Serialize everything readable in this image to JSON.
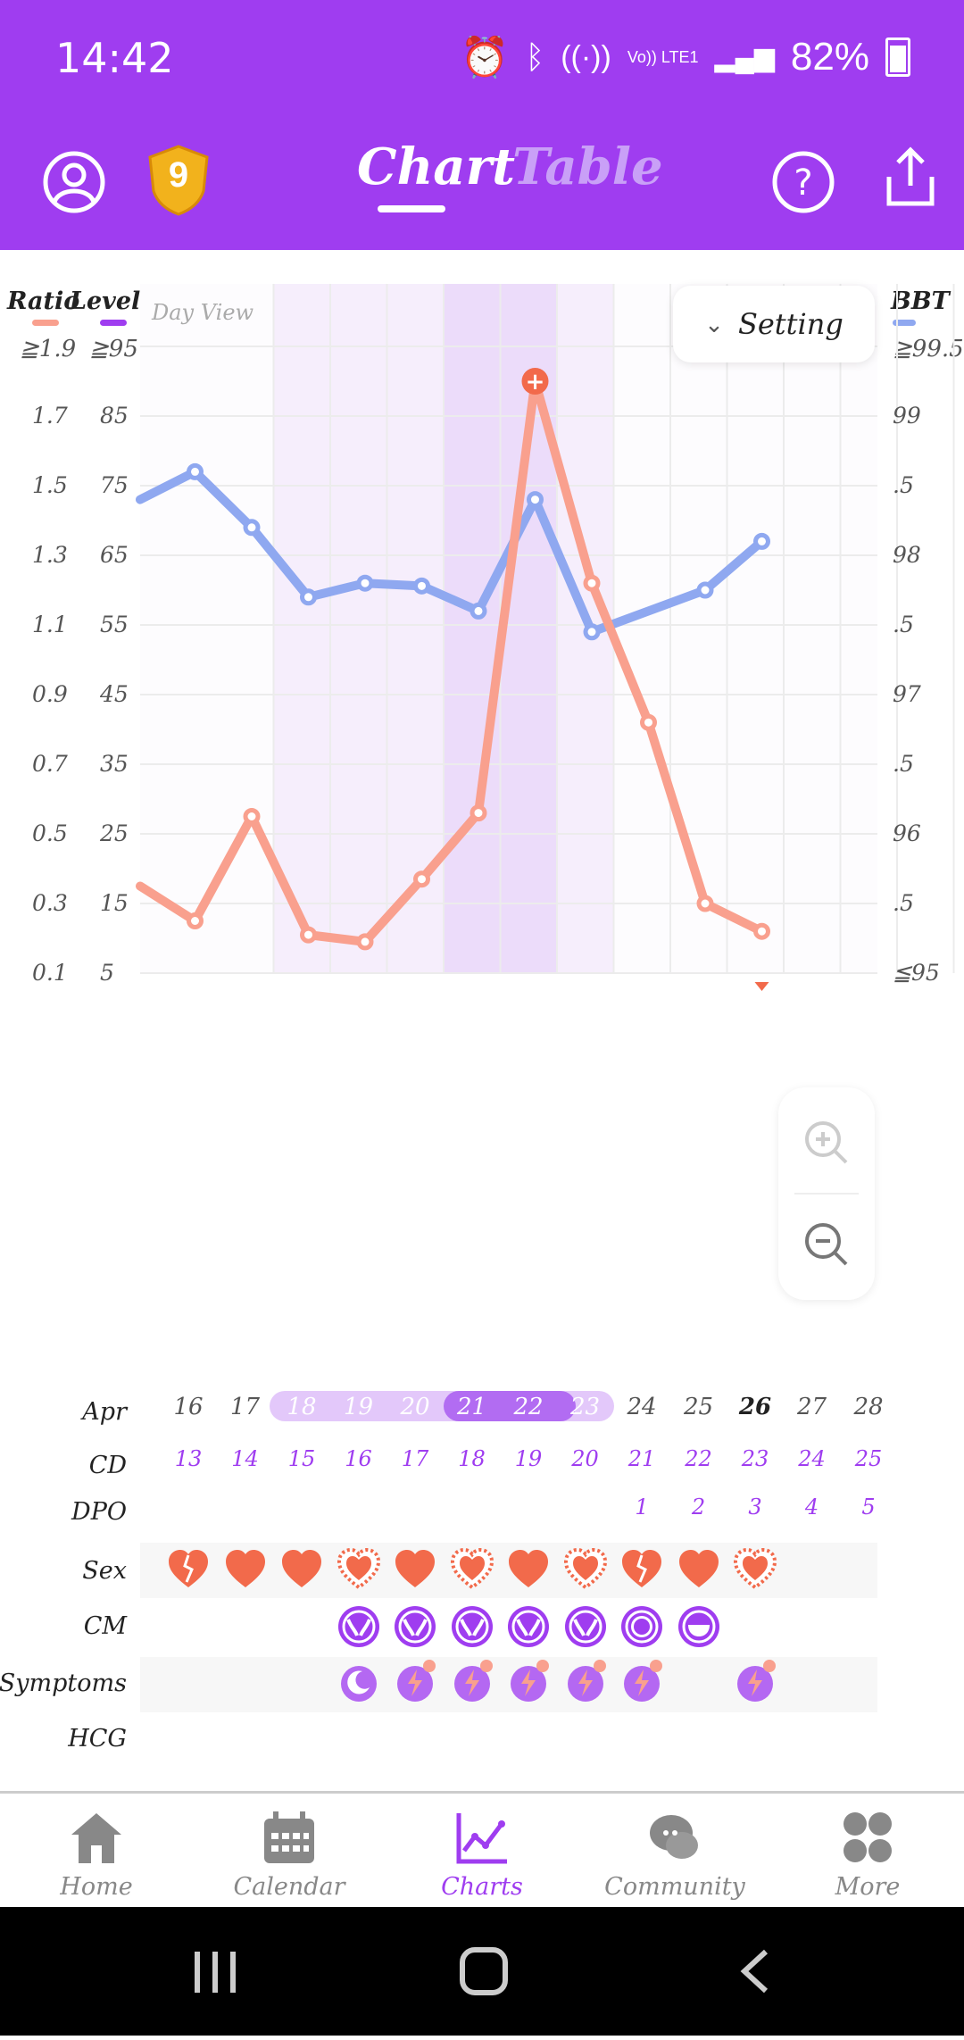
{
  "status_bar": {
    "time": "14:42",
    "battery": "82%",
    "network": "Vo)) LTE1"
  },
  "header": {
    "tabs": [
      {
        "label": "Chart",
        "active": true
      },
      {
        "label": "Table",
        "active": false
      }
    ],
    "badge_number": "9"
  },
  "chart_labels": {
    "left_title_ratio": "Ratio",
    "left_title_level": "Level",
    "right_title": "BBT",
    "view_mode": "Day View",
    "setting_label": "Setting",
    "ratio_top": "≧1.9",
    "level_top": "≧95",
    "bbt_top": "≧99.5",
    "bbt_bottom": "≦95",
    "ratio_ticks": [
      "1.7",
      "1.5",
      "1.3",
      "1.1",
      "0.9",
      "0.7",
      "0.5",
      "0.3",
      "0.1"
    ],
    "level_ticks": [
      "85",
      "75",
      "65",
      "55",
      "45",
      "35",
      "25",
      "15",
      "5"
    ],
    "bbt_ticks": [
      "99",
      ".5",
      "98",
      ".5",
      "97",
      ".5",
      "96",
      ".5"
    ]
  },
  "chart_data": {
    "type": "line",
    "x": [
      "Apr 15",
      "Apr 16",
      "Apr 17",
      "Apr 18",
      "Apr 19",
      "Apr 20",
      "Apr 21",
      "Apr 22",
      "Apr 23",
      "Apr 24",
      "Apr 25",
      "Apr 26"
    ],
    "series": [
      {
        "name": "Ratio",
        "color": "#f9a08e",
        "values": [
          0.35,
          0.25,
          0.55,
          0.21,
          0.19,
          0.37,
          0.56,
          1.8,
          1.22,
          0.82,
          0.3,
          0.22
        ]
      },
      {
        "name": "BBT",
        "color": "#8fa8f0",
        "values": [
          98.4,
          98.6,
          98.2,
          97.7,
          97.8,
          97.78,
          97.6,
          98.4,
          97.45,
          null,
          97.75,
          98.1
        ]
      }
    ],
    "ratio_range": [
      0.1,
      1.9
    ],
    "bbt_range": [
      95,
      99.5
    ],
    "fertile_window": [
      "Apr 18",
      "Apr 19",
      "Apr 20",
      "Apr 21",
      "Apr 22",
      "Apr 23"
    ],
    "peak_day": "Apr 22"
  },
  "rows": {
    "month_label": "Apr",
    "cd_label": "CD",
    "dpo_label": "DPO",
    "sex_label": "Sex",
    "cm_label": "CM",
    "symptoms_label": "Symptoms",
    "hcg_label": "HCG",
    "dates": [
      "16",
      "17",
      "18",
      "19",
      "20",
      "21",
      "22",
      "23",
      "24",
      "25",
      "26",
      "27",
      "28"
    ],
    "cd": [
      "13",
      "14",
      "15",
      "16",
      "17",
      "18",
      "19",
      "20",
      "21",
      "22",
      "23",
      "24",
      "25"
    ],
    "dpo": [
      "",
      "",
      "",
      "",
      "",
      "",
      "",
      "",
      "1",
      "2",
      "3",
      "4",
      "5"
    ]
  },
  "bottom_nav": [
    {
      "label": "Home",
      "icon": "home-icon"
    },
    {
      "label": "Calendar",
      "icon": "calendar-icon"
    },
    {
      "label": "Charts",
      "icon": "charts-icon",
      "active": true
    },
    {
      "label": "Community",
      "icon": "community-icon"
    },
    {
      "label": "More",
      "icon": "more-icon"
    }
  ],
  "colors": {
    "brand": "#9f3df0",
    "ratio": "#f9a08e",
    "bbt": "#8fa8f0",
    "heart": "#f26a4b"
  }
}
